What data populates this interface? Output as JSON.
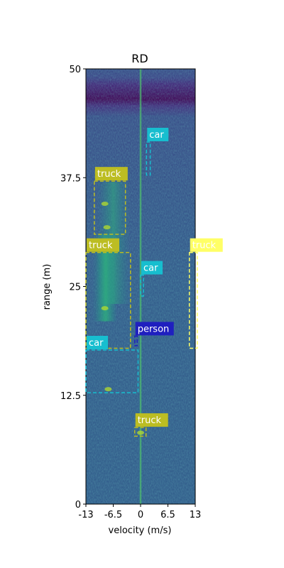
{
  "chart_data": {
    "type": "heatmap",
    "title": "RD",
    "xlabel": "velocity (m/s)",
    "ylabel": "range (m)",
    "xlim": [
      -13,
      13
    ],
    "ylim": [
      0,
      50
    ],
    "xticks": [
      -13,
      -6.5,
      0,
      6.5,
      13
    ],
    "xtick_labels": [
      "-13",
      "-6.5",
      "0",
      "6.5",
      "13"
    ],
    "yticks": [
      0,
      12.5,
      25,
      37.5,
      50
    ],
    "ytick_labels": [
      "0",
      "12.5",
      "25",
      "37.5",
      "50"
    ],
    "colormap": "viridis",
    "detections": [
      {
        "label": "car",
        "color": "#17becf",
        "v_min": 1.4,
        "v_max": 2.3,
        "r_min": 37.8,
        "r_max": 41.6
      },
      {
        "label": "truck",
        "color": "#bcbd22",
        "v_min": -11.0,
        "v_max": -3.6,
        "r_min": 31.0,
        "r_max": 37.1
      },
      {
        "label": "truck",
        "color": "#ffff66",
        "v_min": 11.6,
        "v_max": 13.5,
        "r_min": 17.9,
        "r_max": 28.9
      },
      {
        "label": "car",
        "color": "#17becf",
        "v_min": 0.0,
        "v_max": 0.7,
        "r_min": 23.9,
        "r_max": 26.3
      },
      {
        "label": "truck",
        "color": "#bcbd22",
        "v_min": -13.0,
        "v_max": -2.4,
        "r_min": 17.9,
        "r_max": 28.9
      },
      {
        "label": "person",
        "color": "#1f1fbf",
        "v_min": -1.4,
        "v_max": -0.8,
        "r_min": 18.2,
        "r_max": 19.3
      },
      {
        "label": "car",
        "color": "#17becf",
        "v_min": -13.0,
        "v_max": -0.6,
        "r_min": 12.8,
        "r_max": 17.7
      },
      {
        "label": "truck",
        "color": "#bcbd22",
        "v_min": -1.4,
        "v_max": 1.3,
        "r_min": 7.8,
        "r_max": 8.8
      }
    ]
  }
}
